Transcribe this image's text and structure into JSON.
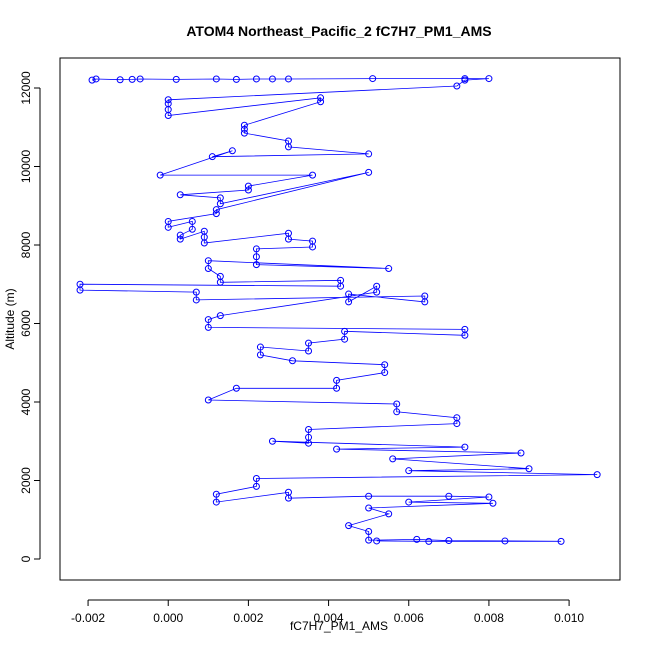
{
  "chart_data": {
    "type": "line",
    "title": "ATOM4 Northeast_Pacific_2 fC7H7_PM1_AMS",
    "x_label": "fC7H7_PM1_AMS",
    "y_label": "Altitude (m)",
    "color": "#0000ff",
    "marker": "circle",
    "grid": false,
    "xlim": [
      -0.0027,
      0.01127
    ],
    "ylim": [
      -535,
      12764
    ],
    "xticks": [
      -0.002,
      {
        "value": 0,
        "label": "0.000"
      },
      0.002,
      0.004,
      0.006,
      0.008,
      {
        "value": 0.01,
        "label": "0.010"
      }
    ],
    "yticks": [
      0,
      2000,
      4000,
      6000,
      8000,
      10000,
      12000
    ],
    "x": [
      -0.0019,
      -0.0018,
      -0.0012,
      -0.0009,
      -0.0007,
      0.0002,
      0.0012,
      0.0017,
      0.0022,
      0.0026,
      0.003,
      0.0051,
      0.0074,
      0.008,
      0.0074,
      0.0072,
      0,
      0,
      0,
      0,
      0.0038,
      0.0038,
      0.0019,
      0.0019,
      0.0019,
      0.003,
      0.003,
      0.005,
      0.0011,
      0.0016,
      -0.0002,
      0.0036,
      0.002,
      0.002,
      0.0003,
      0.0013,
      0.0013,
      0.005,
      0.0012,
      0.0012,
      0,
      0,
      0.0006,
      0.0006,
      0.0003,
      0.0003,
      0.0009,
      0.0009,
      0.0009,
      0.003,
      0.003,
      0.0036,
      0.0036,
      0.0022,
      0.0022,
      0.0022,
      0.0055,
      0.001,
      0.001,
      0.0013,
      0.0013,
      0.0043,
      0.0043,
      -0.0022,
      -0.0022,
      0.0007,
      0.0007,
      0.0064,
      0.0064,
      0.0045,
      0.0045,
      0.0052,
      0.0052,
      0.0013,
      0.001,
      0.001,
      0.0074,
      0.0074,
      0.0044,
      0.0044,
      0.0035,
      0.0035,
      0.0023,
      0.0023,
      0.0031,
      0.0054,
      0.0054,
      0.0042,
      0.0042,
      0.0017,
      0.001,
      0.0057,
      0.0057,
      0.0072,
      0.0072,
      0.0035,
      0.0035,
      0.0035,
      0.0026,
      0.0074,
      0.0042,
      0.0088,
      0.0056,
      0.009,
      0.006,
      0.0107,
      0.0022,
      0.0022,
      0.0012,
      0.0012,
      0.003,
      0.003,
      0.005,
      0.007,
      0.008,
      0.006,
      0.0081,
      0.005,
      0.0055,
      0.0045,
      0.005,
      0.005,
      0.0062,
      0.007,
      0.0084,
      0.0098,
      0.0065,
      0.0052
    ],
    "values": [
      12200,
      12230,
      12210,
      12220,
      12230,
      12220,
      12230,
      12220,
      12230,
      12230,
      12230,
      12240,
      12240,
      12240,
      12200,
      12050,
      11700,
      11600,
      11450,
      11300,
      11750,
      11650,
      11050,
      10950,
      10850,
      10650,
      10500,
      10320,
      10250,
      10400,
      9780,
      9780,
      9500,
      9400,
      9280,
      9200,
      9050,
      9850,
      8900,
      8800,
      8600,
      8450,
      8600,
      8400,
      8250,
      8150,
      8350,
      8200,
      8050,
      8300,
      8150,
      8100,
      7950,
      7900,
      7700,
      7500,
      7400,
      7600,
      7400,
      7200,
      7050,
      7100,
      6950,
      7000,
      6850,
      6800,
      6600,
      6700,
      6550,
      6750,
      6550,
      6950,
      6800,
      6200,
      6100,
      5900,
      5850,
      5700,
      5800,
      5600,
      5500,
      5300,
      5400,
      5200,
      5050,
      4950,
      4750,
      4550,
      4350,
      4350,
      4050,
      3950,
      3750,
      3600,
      3450,
      3300,
      3100,
      2950,
      3000,
      2850,
      2800,
      2700,
      2550,
      2300,
      2250,
      2150,
      2050,
      1850,
      1650,
      1450,
      1700,
      1550,
      1600,
      1600,
      1580,
      1450,
      1420,
      1300,
      1150,
      850,
      700,
      480,
      500,
      470,
      460,
      450,
      450,
      460
    ]
  }
}
